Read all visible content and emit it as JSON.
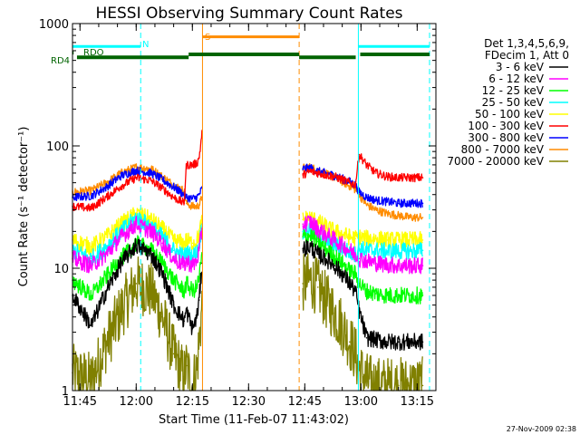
{
  "chart_data": {
    "type": "line",
    "title": "HESSI Observing Summary Count Rates",
    "xlabel": "Start Time (11-Feb-07 11:43:02)",
    "ylabel": "Count Rate (s⁻¹ detector⁻¹)",
    "footer": "27-Nov-2009 02:38",
    "yscale": "log",
    "ylim": [
      1,
      1000
    ],
    "xlim_min": [
      703,
      800
    ],
    "x_ticks": [
      {
        "t": 705,
        "label": "11:45"
      },
      {
        "t": 720,
        "label": "12:00"
      },
      {
        "t": 735,
        "label": "12:15"
      },
      {
        "t": 750,
        "label": "12:30"
      },
      {
        "t": 765,
        "label": "12:45"
      },
      {
        "t": 780,
        "label": "13:00"
      },
      {
        "t": 795,
        "label": "13:15"
      }
    ],
    "y_ticks": [
      {
        "v": 1,
        "label": "1"
      },
      {
        "v": 10,
        "label": "10"
      },
      {
        "v": 100,
        "label": "100"
      },
      {
        "v": 1000,
        "label": "1000"
      }
    ],
    "legend_title": [
      "Det 1,3,4,5,6,9,",
      "FDecim 1, Att 0"
    ],
    "legend_position": "right",
    "series": [
      {
        "name": "3 - 6 keV",
        "color": "#000000",
        "x": [
          703.0,
          708,
          712,
          716,
          720,
          724,
          727,
          730,
          732.8,
          733.4,
          735.0,
          736.2,
          736.8,
          737.6,
          764.5,
          766.5,
          768.5,
          770.5,
          773,
          775,
          777,
          778.5,
          779.5,
          781.5,
          784,
          787,
          790,
          793,
          796.5
        ],
        "y": [
          6,
          3.4,
          6.5,
          11,
          15.5,
          13,
          9,
          5,
          3.7,
          4.5,
          3.2,
          4,
          5.5,
          11,
          14.5,
          15,
          13,
          12,
          10.5,
          9,
          7.5,
          6.5,
          4.5,
          2.7,
          2.6,
          2.5,
          2.5,
          2.5,
          2.5
        ]
      },
      {
        "name": "6 - 12 keV",
        "color": "#ff00ff",
        "x": [
          703.0,
          708,
          712,
          716,
          720,
          724,
          727,
          730,
          732.8,
          733.4,
          735.0,
          736.2,
          736.8,
          737.6,
          764.5,
          766.5,
          768.5,
          770.5,
          773,
          775,
          777,
          778.5,
          779.5,
          781.5,
          784,
          787,
          790,
          793,
          796.5
        ],
        "y": [
          12,
          10.5,
          13,
          18,
          23,
          20,
          16,
          12,
          10.5,
          11.5,
          10.5,
          11.5,
          14,
          21,
          23,
          24,
          21,
          19,
          17,
          15.5,
          14,
          13,
          12,
          11.5,
          11,
          10.7,
          10.5,
          10.5,
          10.5
        ]
      },
      {
        "name": "12 - 25 keV",
        "color": "#00ff00",
        "x": [
          703.0,
          708,
          712,
          716,
          720,
          724,
          727,
          730,
          732.8,
          733.4,
          735.0,
          736.2,
          736.8,
          737.6,
          764.5,
          766.5,
          768.5,
          770.5,
          773,
          775,
          777,
          778.5,
          779.5,
          781.5,
          784,
          787,
          790,
          793,
          796.5
        ],
        "y": [
          8,
          6,
          8.5,
          12,
          16,
          14,
          11,
          8,
          6.5,
          7.5,
          6.5,
          7,
          8.5,
          13,
          18,
          18.5,
          16.5,
          14.5,
          12.5,
          11,
          9.5,
          9,
          7.5,
          6.5,
          6.2,
          6,
          6,
          6,
          6
        ]
      },
      {
        "name": "25 - 50 keV",
        "color": "#00ffff",
        "x": [
          703.0,
          708,
          712,
          716,
          720,
          724,
          727,
          730,
          732.8,
          733.4,
          735.0,
          736.2,
          736.8,
          737.6,
          764.5,
          766.5,
          768.5,
          770.5,
          773,
          775,
          777,
          778.5,
          779.5,
          781.5,
          784,
          787,
          790,
          793,
          796.5
        ],
        "y": [
          14,
          12,
          15,
          20,
          26,
          22,
          18,
          14,
          12.5,
          13.5,
          12.5,
          13.5,
          15.5,
          23,
          20,
          21,
          19,
          17,
          15.5,
          14.5,
          13.5,
          13,
          14.5,
          14,
          14,
          13.8,
          13.8,
          13.8,
          14
        ]
      },
      {
        "name": "50 - 100 keV",
        "color": "#ffff00",
        "x": [
          703.0,
          708,
          712,
          716,
          720,
          724,
          727,
          730,
          732.8,
          733.4,
          735.0,
          736.2,
          736.8,
          737.6,
          764.5,
          766.5,
          768.5,
          770.5,
          773,
          775,
          777,
          778.5,
          779.5,
          781.5,
          784,
          787,
          790,
          793,
          796.5
        ],
        "y": [
          17,
          15,
          18,
          23,
          28,
          25,
          21,
          17,
          16,
          17,
          16,
          17,
          19,
          25,
          25,
          26,
          24,
          22,
          20,
          19,
          18,
          17.5,
          18,
          17.5,
          17.5,
          17,
          17,
          17,
          17
        ]
      },
      {
        "name": "100 - 300 keV",
        "color": "#ff0000",
        "x": [
          703.0,
          708,
          712,
          716,
          720,
          724,
          727,
          730,
          732.8,
          733.4,
          735.0,
          736.2,
          736.8,
          737.6,
          764.5,
          766.5,
          768.5,
          770.5,
          773,
          775,
          777,
          778.5,
          779.5,
          781.5,
          784,
          787,
          790,
          793,
          796.5
        ],
        "y": [
          32,
          31,
          38,
          47,
          55,
          52,
          45,
          38,
          34,
          70,
          70,
          72,
          80,
          130,
          58,
          62,
          60,
          58,
          56,
          53,
          50,
          48,
          85,
          70,
          60,
          56,
          55,
          55,
          55
        ]
      },
      {
        "name": "300 - 800 keV",
        "color": "#0000ff",
        "x": [
          703.0,
          708,
          712,
          716,
          720,
          724,
          727,
          730,
          732.8,
          733.4,
          735.0,
          736.2,
          736.8,
          737.6,
          764.5,
          766.5,
          768.5,
          770.5,
          773,
          775,
          777,
          778.5,
          779.5,
          781.5,
          784,
          787,
          790,
          793,
          796.5
        ],
        "y": [
          38,
          39,
          46,
          57,
          63,
          60,
          53,
          46,
          40,
          38,
          37,
          38,
          40,
          45,
          65,
          66,
          62,
          60,
          57,
          54,
          51,
          48,
          42,
          38,
          36,
          35,
          34,
          34,
          34
        ]
      },
      {
        "name": "800 - 7000 keV",
        "color": "#ff8c00",
        "x": [
          703.0,
          708,
          712,
          716,
          720,
          724,
          727,
          730,
          732.8,
          733.4,
          735.0,
          736.2,
          736.8,
          737.6,
          764.5,
          766.5,
          768.5,
          770.5,
          773,
          775,
          777,
          778.5,
          779.5,
          781.5,
          784,
          787,
          790,
          793,
          796.5
        ],
        "y": [
          42,
          43,
          50,
          60,
          67,
          65,
          56,
          48,
          43,
          34,
          32,
          32,
          33,
          38,
          66,
          67,
          63,
          59,
          55,
          51,
          47,
          44,
          40,
          33,
          30,
          28,
          27,
          26,
          26
        ]
      },
      {
        "name": "7000 - 20000 keV",
        "color": "#808000",
        "x": [
          703.0,
          708,
          712,
          716,
          720,
          724,
          727,
          730,
          732.8,
          733.4,
          735.0,
          736.2,
          736.8,
          737.6,
          764.5,
          766.5,
          768.5,
          770.5,
          773,
          775,
          777,
          778.5,
          779.5,
          781.5,
          784,
          787,
          790,
          793,
          796.5
        ],
        "y": [
          1.4,
          1.2,
          2.4,
          4.5,
          7.5,
          6.5,
          4,
          2,
          1.3,
          1.6,
          1.1,
          1.5,
          2.5,
          5,
          7.5,
          8,
          7,
          5.5,
          4.3,
          3.4,
          2.5,
          2,
          1.5,
          1.2,
          1.1,
          1.1,
          1.1,
          1.1,
          1.1
        ]
      }
    ],
    "vlines": [
      {
        "t": 703.0,
        "color": "#00ffff",
        "style": "solid"
      },
      {
        "t": 721.2,
        "color": "#00ffff",
        "style": "dashed"
      },
      {
        "t": 737.7,
        "color": "#ff8c00",
        "style": "solid"
      },
      {
        "t": 763.5,
        "color": "#ff8c00",
        "style": "dashed"
      },
      {
        "t": 779.3,
        "color": "#00ffff",
        "style": "solid"
      },
      {
        "t": 798.3,
        "color": "#00ffff",
        "style": "dashed"
      }
    ],
    "flag_bars": [
      {
        "label": "N",
        "color": "#00ffff",
        "width": 3,
        "y": 650,
        "segments": [
          [
            703.0,
            721.2
          ],
          [
            779.3,
            798.3
          ]
        ]
      },
      {
        "label": "S",
        "color": "#ff8c00",
        "width": 3,
        "y": 780,
        "segments": [
          [
            737.7,
            763.5
          ]
        ]
      },
      {
        "label": "RDO",
        "color": "#006400",
        "width": 4,
        "y": 578,
        "segments": [
          [
            703.0,
            703.3
          ]
        ]
      },
      {
        "label": "RD4",
        "color": "#006400",
        "width": 4,
        "y": 530,
        "segments": [
          [
            704.2,
            734.0
          ]
        ]
      },
      {
        "label": "",
        "color": "#006400",
        "width": 4,
        "y": 560,
        "segments": [
          [
            734.0,
            763.5
          ],
          [
            779.8,
            798.3
          ]
        ]
      },
      {
        "label": "",
        "color": "#006400",
        "width": 4,
        "y": 530,
        "segments": [
          [
            763.5,
            778.6
          ]
        ]
      }
    ]
  }
}
